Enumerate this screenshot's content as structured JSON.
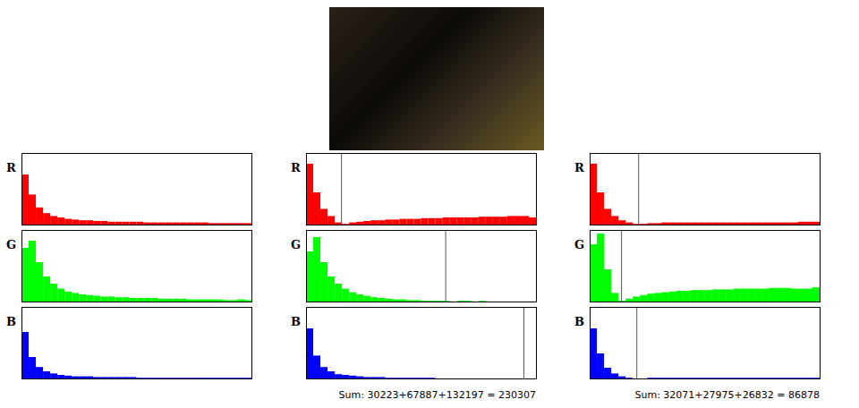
{
  "chart_data": [
    {
      "type": "histogram",
      "title": "R",
      "color": "#ff0000",
      "xlim": [
        0,
        256
      ],
      "ylim": [
        0,
        100
      ],
      "tick_labels": false,
      "bins": [
        0,
        8,
        16,
        24,
        32,
        40,
        48,
        56,
        64,
        72,
        80,
        88,
        96,
        104,
        112,
        120,
        128,
        136,
        144,
        152,
        160,
        168,
        176,
        184,
        192,
        200,
        208,
        216,
        224,
        232,
        240,
        248,
        256
      ],
      "values": [
        70,
        42,
        24,
        16,
        12,
        10,
        8,
        7,
        6,
        6,
        5,
        5,
        4,
        4,
        4,
        4,
        4,
        3,
        3,
        3,
        3,
        3,
        3,
        3,
        3,
        3,
        2,
        2,
        2,
        2,
        2,
        2
      ]
    },
    {
      "type": "histogram",
      "title": "G",
      "color": "#00ff00",
      "xlim": [
        0,
        256
      ],
      "ylim": [
        0,
        100
      ],
      "tick_labels": false,
      "bins": [
        0,
        8,
        16,
        24,
        32,
        40,
        48,
        56,
        64,
        72,
        80,
        88,
        96,
        104,
        112,
        120,
        128,
        136,
        144,
        152,
        160,
        168,
        176,
        184,
        192,
        200,
        208,
        216,
        224,
        232,
        240,
        248,
        256
      ],
      "values": [
        75,
        85,
        55,
        35,
        25,
        18,
        14,
        12,
        10,
        9,
        8,
        7,
        7,
        6,
        6,
        5,
        5,
        5,
        5,
        4,
        4,
        4,
        4,
        3,
        3,
        3,
        3,
        3,
        2,
        2,
        3,
        2
      ]
    },
    {
      "type": "histogram",
      "title": "B",
      "color": "#0000ff",
      "xlim": [
        0,
        256
      ],
      "ylim": [
        0,
        100
      ],
      "tick_labels": false,
      "bins": [
        0,
        8,
        16,
        24,
        32,
        40,
        48,
        56,
        64,
        72,
        80,
        88,
        96,
        104,
        112,
        120,
        128,
        136,
        144,
        152,
        160,
        168,
        176,
        184,
        192,
        200,
        208,
        216,
        224,
        232,
        240,
        248,
        256
      ],
      "values": [
        65,
        30,
        16,
        10,
        7,
        5,
        4,
        3,
        3,
        3,
        2,
        2,
        2,
        2,
        2,
        2,
        1,
        1,
        1,
        1,
        1,
        1,
        1,
        1,
        1,
        1,
        1,
        1,
        1,
        1,
        1,
        1
      ]
    },
    {
      "type": "histogram",
      "title": "R",
      "color": "#ff0000",
      "xlim": [
        0,
        256
      ],
      "ylim": [
        0,
        100
      ],
      "tick_labels": false,
      "threshold": 39,
      "bins": [
        0,
        8,
        16,
        24,
        32,
        40,
        48,
        56,
        64,
        72,
        80,
        88,
        96,
        104,
        112,
        120,
        128,
        136,
        144,
        152,
        160,
        168,
        176,
        184,
        192,
        200,
        208,
        216,
        224,
        232,
        240,
        248,
        256
      ],
      "values": [
        85,
        45,
        22,
        12,
        3,
        1,
        3,
        4,
        5,
        6,
        6,
        7,
        7,
        8,
        8,
        8,
        9,
        9,
        9,
        10,
        10,
        10,
        10,
        10,
        11,
        11,
        11,
        11,
        12,
        12,
        12,
        10
      ]
    },
    {
      "type": "histogram",
      "title": "G",
      "color": "#00ff00",
      "xlim": [
        0,
        256
      ],
      "ylim": [
        0,
        100
      ],
      "tick_labels": false,
      "threshold": 155,
      "bins": [
        0,
        8,
        16,
        24,
        32,
        40,
        48,
        56,
        64,
        72,
        80,
        88,
        96,
        104,
        112,
        120,
        128,
        136,
        144,
        152,
        160,
        168,
        176,
        184,
        192,
        200,
        208,
        216,
        224,
        232,
        240,
        248,
        256
      ],
      "values": [
        70,
        90,
        55,
        35,
        25,
        18,
        13,
        10,
        8,
        6,
        5,
        4,
        3,
        3,
        2,
        2,
        1,
        1,
        1,
        1,
        0,
        1,
        1,
        0,
        1,
        0,
        0,
        0,
        0,
        0,
        0,
        0
      ]
    },
    {
      "type": "histogram",
      "title": "B",
      "color": "#0000ff",
      "xlim": [
        0,
        256
      ],
      "ylim": [
        0,
        100
      ],
      "tick_labels": false,
      "threshold": 242,
      "caption": "Sum: 30223+67887+132197 = 230307",
      "bins": [
        0,
        8,
        16,
        24,
        32,
        40,
        48,
        56,
        64,
        72,
        80,
        88,
        96,
        104,
        112,
        120,
        128,
        136,
        144,
        152,
        160,
        168,
        176,
        184,
        192,
        200,
        208,
        216,
        224,
        232,
        240,
        248,
        256
      ],
      "values": [
        70,
        32,
        16,
        10,
        6,
        5,
        4,
        3,
        2,
        2,
        2,
        1,
        1,
        1,
        1,
        1,
        1,
        1,
        0,
        0,
        0,
        0,
        0,
        0,
        0,
        0,
        0,
        0,
        0,
        0,
        0,
        0
      ]
    },
    {
      "type": "histogram",
      "title": "R",
      "color": "#ff0000",
      "xlim": [
        0,
        256
      ],
      "ylim": [
        0,
        100
      ],
      "tick_labels": false,
      "threshold": 54,
      "bins": [
        0,
        8,
        16,
        24,
        32,
        40,
        48,
        56,
        64,
        72,
        80,
        88,
        96,
        104,
        112,
        120,
        128,
        136,
        144,
        152,
        160,
        168,
        176,
        184,
        192,
        200,
        208,
        216,
        224,
        232,
        240,
        248,
        256
      ],
      "values": [
        85,
        45,
        22,
        12,
        6,
        3,
        1,
        1,
        2,
        2,
        3,
        3,
        3,
        3,
        3,
        3,
        3,
        3,
        3,
        3,
        3,
        3,
        3,
        3,
        3,
        3,
        3,
        3,
        3,
        4,
        4,
        4
      ]
    },
    {
      "type": "histogram",
      "title": "G",
      "color": "#00ff00",
      "xlim": [
        0,
        256
      ],
      "ylim": [
        0,
        100
      ],
      "tick_labels": false,
      "threshold": 35,
      "bins": [
        0,
        8,
        16,
        24,
        32,
        40,
        48,
        56,
        64,
        72,
        80,
        88,
        96,
        104,
        112,
        120,
        128,
        136,
        144,
        152,
        160,
        168,
        176,
        184,
        192,
        200,
        208,
        216,
        224,
        232,
        240,
        248,
        256
      ],
      "values": [
        80,
        95,
        45,
        12,
        1,
        4,
        7,
        9,
        11,
        12,
        13,
        14,
        15,
        15,
        16,
        16,
        16,
        17,
        17,
        17,
        18,
        18,
        18,
        18,
        18,
        19,
        19,
        19,
        18,
        18,
        18,
        20
      ]
    },
    {
      "type": "histogram",
      "title": "B",
      "color": "#0000ff",
      "xlim": [
        0,
        256
      ],
      "ylim": [
        0,
        100
      ],
      "tick_labels": false,
      "threshold": 52,
      "caption": "Sum: 32071+27975+26832 = 86878",
      "bins": [
        0,
        8,
        16,
        24,
        32,
        40,
        48,
        56,
        64,
        72,
        80,
        88,
        96,
        104,
        112,
        120,
        128,
        136,
        144,
        152,
        160,
        168,
        176,
        184,
        192,
        200,
        208,
        216,
        224,
        232,
        240,
        248,
        256
      ],
      "values": [
        70,
        35,
        15,
        7,
        3,
        1,
        0,
        0,
        1,
        1,
        1,
        1,
        1,
        1,
        1,
        1,
        1,
        1,
        1,
        1,
        1,
        1,
        1,
        1,
        1,
        1,
        1,
        1,
        1,
        1,
        1,
        1
      ]
    }
  ]
}
